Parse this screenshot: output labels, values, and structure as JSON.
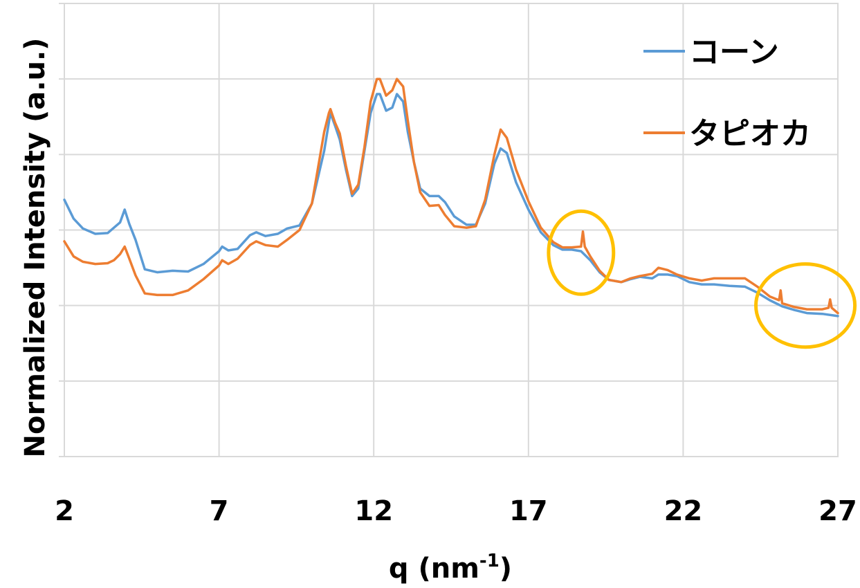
{
  "chart_data": {
    "type": "line",
    "xlabel": "q (nm",
    "xlabel_sup": "-1",
    "xlabel_close": ")",
    "ylabel": "Normalized Intensity (a.u.)",
    "xlim": [
      2,
      27
    ],
    "ylim": [
      0,
      6
    ],
    "x_ticks": [
      "2",
      "7",
      "12",
      "17",
      "22",
      "27"
    ],
    "grid": true,
    "legend_position": "top-right",
    "series": [
      {
        "name": "コーン",
        "color": "#5b9bd5",
        "points": [
          [
            2.0,
            3.4
          ],
          [
            2.3,
            3.15
          ],
          [
            2.6,
            3.02
          ],
          [
            3.0,
            2.95
          ],
          [
            3.4,
            2.96
          ],
          [
            3.6,
            3.03
          ],
          [
            3.8,
            3.1
          ],
          [
            3.95,
            3.27
          ],
          [
            4.1,
            3.08
          ],
          [
            4.3,
            2.87
          ],
          [
            4.6,
            2.48
          ],
          [
            5.0,
            2.44
          ],
          [
            5.5,
            2.46
          ],
          [
            6.0,
            2.45
          ],
          [
            6.5,
            2.55
          ],
          [
            7.0,
            2.72
          ],
          [
            7.1,
            2.78
          ],
          [
            7.3,
            2.73
          ],
          [
            7.6,
            2.75
          ],
          [
            8.0,
            2.93
          ],
          [
            8.2,
            2.97
          ],
          [
            8.5,
            2.92
          ],
          [
            8.9,
            2.95
          ],
          [
            9.2,
            3.02
          ],
          [
            9.6,
            3.06
          ],
          [
            10.0,
            3.35
          ],
          [
            10.4,
            4.05
          ],
          [
            10.6,
            4.55
          ],
          [
            10.75,
            4.38
          ],
          [
            10.9,
            4.2
          ],
          [
            11.1,
            3.8
          ],
          [
            11.3,
            3.45
          ],
          [
            11.5,
            3.55
          ],
          [
            11.7,
            4.05
          ],
          [
            11.9,
            4.55
          ],
          [
            12.1,
            4.8
          ],
          [
            12.2,
            4.8
          ],
          [
            12.4,
            4.58
          ],
          [
            12.6,
            4.62
          ],
          [
            12.75,
            4.8
          ],
          [
            12.95,
            4.7
          ],
          [
            13.1,
            4.3
          ],
          [
            13.3,
            3.9
          ],
          [
            13.5,
            3.55
          ],
          [
            13.8,
            3.45
          ],
          [
            14.1,
            3.45
          ],
          [
            14.3,
            3.37
          ],
          [
            14.6,
            3.18
          ],
          [
            15.0,
            3.07
          ],
          [
            15.3,
            3.07
          ],
          [
            15.6,
            3.35
          ],
          [
            15.9,
            3.88
          ],
          [
            16.1,
            4.08
          ],
          [
            16.3,
            4.02
          ],
          [
            16.6,
            3.63
          ],
          [
            17.0,
            3.27
          ],
          [
            17.4,
            2.97
          ],
          [
            17.8,
            2.8
          ],
          [
            18.1,
            2.74
          ],
          [
            18.4,
            2.74
          ],
          [
            18.7,
            2.72
          ],
          [
            19.0,
            2.6
          ],
          [
            19.3,
            2.44
          ],
          [
            19.6,
            2.34
          ],
          [
            20.0,
            2.31
          ],
          [
            20.3,
            2.35
          ],
          [
            20.6,
            2.38
          ],
          [
            21.0,
            2.36
          ],
          [
            21.2,
            2.41
          ],
          [
            21.5,
            2.41
          ],
          [
            21.8,
            2.39
          ],
          [
            22.2,
            2.31
          ],
          [
            22.6,
            2.28
          ],
          [
            23.0,
            2.28
          ],
          [
            23.5,
            2.26
          ],
          [
            24.0,
            2.25
          ],
          [
            24.4,
            2.17
          ],
          [
            24.8,
            2.07
          ],
          [
            25.2,
            1.99
          ],
          [
            25.6,
            1.94
          ],
          [
            26.0,
            1.9
          ],
          [
            26.5,
            1.89
          ],
          [
            27.0,
            1.86
          ]
        ]
      },
      {
        "name": "タピオカ",
        "color": "#ed7d31",
        "points": [
          [
            2.0,
            2.85
          ],
          [
            2.3,
            2.65
          ],
          [
            2.6,
            2.58
          ],
          [
            3.0,
            2.55
          ],
          [
            3.4,
            2.56
          ],
          [
            3.6,
            2.6
          ],
          [
            3.8,
            2.68
          ],
          [
            3.95,
            2.78
          ],
          [
            4.1,
            2.62
          ],
          [
            4.3,
            2.4
          ],
          [
            4.6,
            2.16
          ],
          [
            5.0,
            2.14
          ],
          [
            5.5,
            2.14
          ],
          [
            6.0,
            2.2
          ],
          [
            6.5,
            2.35
          ],
          [
            7.0,
            2.53
          ],
          [
            7.1,
            2.6
          ],
          [
            7.3,
            2.55
          ],
          [
            7.6,
            2.62
          ],
          [
            8.0,
            2.8
          ],
          [
            8.2,
            2.85
          ],
          [
            8.5,
            2.8
          ],
          [
            8.9,
            2.78
          ],
          [
            9.2,
            2.87
          ],
          [
            9.6,
            3.0
          ],
          [
            10.0,
            3.35
          ],
          [
            10.4,
            4.3
          ],
          [
            10.55,
            4.55
          ],
          [
            10.6,
            4.6
          ],
          [
            10.75,
            4.42
          ],
          [
            10.9,
            4.28
          ],
          [
            11.1,
            3.85
          ],
          [
            11.3,
            3.48
          ],
          [
            11.5,
            3.6
          ],
          [
            11.7,
            4.1
          ],
          [
            11.9,
            4.7
          ],
          [
            12.1,
            5.0
          ],
          [
            12.2,
            5.0
          ],
          [
            12.4,
            4.78
          ],
          [
            12.6,
            4.85
          ],
          [
            12.75,
            5.0
          ],
          [
            12.95,
            4.9
          ],
          [
            13.1,
            4.45
          ],
          [
            13.3,
            3.9
          ],
          [
            13.5,
            3.5
          ],
          [
            13.8,
            3.32
          ],
          [
            14.1,
            3.33
          ],
          [
            14.3,
            3.2
          ],
          [
            14.6,
            3.05
          ],
          [
            15.0,
            3.03
          ],
          [
            15.3,
            3.05
          ],
          [
            15.6,
            3.4
          ],
          [
            15.9,
            4.0
          ],
          [
            16.1,
            4.33
          ],
          [
            16.3,
            4.22
          ],
          [
            16.6,
            3.8
          ],
          [
            17.0,
            3.38
          ],
          [
            17.4,
            3.03
          ],
          [
            17.8,
            2.84
          ],
          [
            18.1,
            2.77
          ],
          [
            18.4,
            2.77
          ],
          [
            18.7,
            2.78
          ],
          [
            18.76,
            2.98
          ],
          [
            18.82,
            2.78
          ],
          [
            19.0,
            2.65
          ],
          [
            19.3,
            2.46
          ],
          [
            19.6,
            2.34
          ],
          [
            20.0,
            2.31
          ],
          [
            20.3,
            2.36
          ],
          [
            20.6,
            2.39
          ],
          [
            21.0,
            2.42
          ],
          [
            21.2,
            2.5
          ],
          [
            21.5,
            2.47
          ],
          [
            21.8,
            2.41
          ],
          [
            22.2,
            2.36
          ],
          [
            22.6,
            2.33
          ],
          [
            23.0,
            2.36
          ],
          [
            23.5,
            2.36
          ],
          [
            24.0,
            2.36
          ],
          [
            24.4,
            2.25
          ],
          [
            24.8,
            2.12
          ],
          [
            25.1,
            2.07
          ],
          [
            25.15,
            2.2
          ],
          [
            25.2,
            2.03
          ],
          [
            25.6,
            1.98
          ],
          [
            26.0,
            1.95
          ],
          [
            26.5,
            1.95
          ],
          [
            26.7,
            1.97
          ],
          [
            26.75,
            2.08
          ],
          [
            26.8,
            1.97
          ],
          [
            27.0,
            1.9
          ]
        ]
      }
    ],
    "annotations": [
      {
        "type": "ellipse",
        "cx": 18.7,
        "cy": 2.7,
        "rx": 1.05,
        "ry": 0.55,
        "color": "#ffc000"
      },
      {
        "type": "ellipse",
        "cx": 25.95,
        "cy": 2.0,
        "rx": 1.6,
        "ry": 0.55,
        "color": "#ffc000"
      }
    ]
  }
}
